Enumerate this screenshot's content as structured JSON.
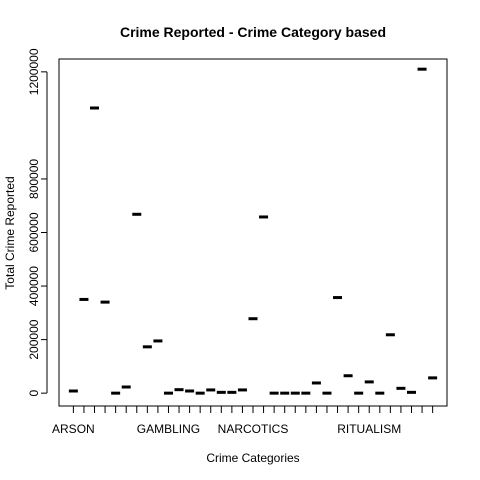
{
  "chart_data": {
    "type": "scatter",
    "title": "Crime Reported - Crime Category based",
    "xlabel": "Crime Categories",
    "ylabel": "Total Crime Reported",
    "ylim": [
      0,
      1200000
    ],
    "yticks": [
      0,
      200000,
      400000,
      600000,
      800000,
      1200000
    ],
    "ytick_labels": [
      "0",
      "200000",
      "400000",
      "600000",
      "800000",
      "1200000"
    ],
    "xtick_labels": [
      {
        "index": 1,
        "label": "ARSON"
      },
      {
        "index": 10,
        "label": "GAMBLING"
      },
      {
        "index": 18,
        "label": "NARCOTICS"
      },
      {
        "index": 29,
        "label": "RITUALISM"
      }
    ],
    "n_categories": 35,
    "values": [
      8000,
      350000,
      1065000,
      340000,
      0,
      23000,
      668000,
      173000,
      195000,
      0,
      13000,
      8000,
      0,
      12000,
      3000,
      3000,
      12000,
      278000,
      658000,
      0,
      0,
      0,
      0,
      38000,
      0,
      357000,
      65000,
      0,
      42000,
      0,
      218000,
      18000,
      3000,
      1210000,
      57000
    ],
    "grid": false,
    "legend": "none"
  }
}
